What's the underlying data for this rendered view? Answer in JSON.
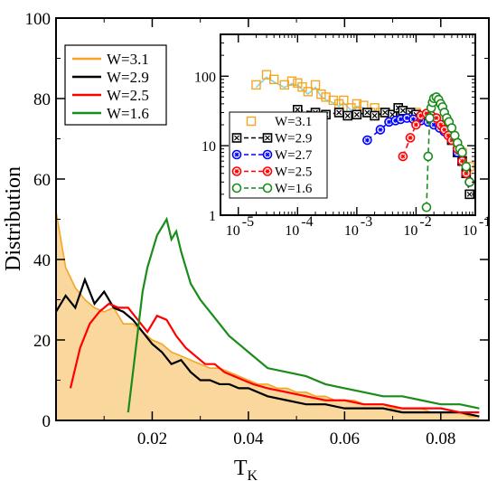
{
  "chart_data": [
    {
      "type": "line",
      "xlabel": "T",
      "xlabel_sub": "K",
      "ylabel": "Distribution",
      "xlim": [
        0,
        0.09
      ],
      "ylim": [
        0,
        100
      ],
      "xticks": [
        0.02,
        0.04,
        0.06,
        0.08
      ],
      "xtick_labels": [
        "0.02",
        "0.04",
        "0.06",
        "0.08"
      ],
      "yticks": [
        0,
        20,
        40,
        60,
        80,
        100
      ],
      "ytick_labels": [
        "0",
        "20",
        "40",
        "60",
        "80",
        "100"
      ],
      "legend_position": "top-left",
      "series": [
        {
          "name": "W=3.1",
          "color": "#f5a623",
          "style": "filled-histogram",
          "x": [
            0.0,
            0.002,
            0.004,
            0.006,
            0.008,
            0.01,
            0.012,
            0.014,
            0.016,
            0.018,
            0.02,
            0.022,
            0.024,
            0.026,
            0.028,
            0.03,
            0.032,
            0.034,
            0.036,
            0.038,
            0.04,
            0.042,
            0.044,
            0.046,
            0.048,
            0.05,
            0.052,
            0.054,
            0.056,
            0.058,
            0.06,
            0.062,
            0.064,
            0.066,
            0.068,
            0.07,
            0.072,
            0.074,
            0.076,
            0.078,
            0.08,
            0.082,
            0.084,
            0.086,
            0.088
          ],
          "y": [
            52,
            38,
            33,
            30,
            28,
            27,
            28,
            24,
            24,
            22,
            20,
            19,
            17,
            16,
            15,
            14,
            13,
            13,
            12,
            11,
            10,
            9,
            9,
            8,
            8,
            7,
            7,
            6,
            6,
            5,
            5,
            5,
            4,
            4,
            4,
            3,
            3,
            3,
            3,
            2,
            2,
            2,
            2,
            1,
            1
          ]
        },
        {
          "name": "W=2.9",
          "color": "#000000",
          "style": "line",
          "x": [
            0.0,
            0.002,
            0.004,
            0.006,
            0.008,
            0.01,
            0.012,
            0.014,
            0.016,
            0.018,
            0.02,
            0.022,
            0.024,
            0.026,
            0.028,
            0.03,
            0.032,
            0.034,
            0.036,
            0.038,
            0.04,
            0.044,
            0.048,
            0.052,
            0.056,
            0.06,
            0.064,
            0.068,
            0.072,
            0.076,
            0.08,
            0.084,
            0.088
          ],
          "y": [
            27,
            31,
            28,
            35,
            29,
            32,
            28,
            27,
            25,
            22,
            19,
            17,
            14,
            15,
            12,
            10,
            10,
            9,
            9,
            8,
            8,
            6,
            5,
            4,
            4,
            3,
            3,
            3,
            2,
            2,
            2,
            2,
            1
          ]
        },
        {
          "name": "W=2.5",
          "color": "#ff0000",
          "style": "line",
          "x": [
            0.003,
            0.005,
            0.007,
            0.009,
            0.011,
            0.013,
            0.015,
            0.017,
            0.019,
            0.021,
            0.023,
            0.025,
            0.027,
            0.029,
            0.031,
            0.033,
            0.035,
            0.037,
            0.039,
            0.041,
            0.044,
            0.048,
            0.052,
            0.056,
            0.06,
            0.064,
            0.068,
            0.072,
            0.076,
            0.08,
            0.084,
            0.088
          ],
          "y": [
            8,
            18,
            24,
            27,
            29,
            28,
            28,
            25,
            22,
            26,
            25,
            21,
            18,
            16,
            14,
            14,
            12,
            11,
            10,
            9,
            8,
            7,
            6,
            5,
            5,
            4,
            4,
            3,
            3,
            3,
            2,
            2
          ]
        },
        {
          "name": "W=1.6",
          "color": "#1a8c1a",
          "style": "line",
          "x": [
            0.015,
            0.016,
            0.017,
            0.018,
            0.019,
            0.02,
            0.021,
            0.022,
            0.023,
            0.024,
            0.025,
            0.026,
            0.027,
            0.028,
            0.029,
            0.03,
            0.032,
            0.034,
            0.036,
            0.038,
            0.04,
            0.044,
            0.048,
            0.052,
            0.056,
            0.06,
            0.064,
            0.068,
            0.072,
            0.076,
            0.08,
            0.084,
            0.088
          ],
          "y": [
            2,
            12,
            22,
            32,
            38,
            42,
            46,
            48,
            50,
            45,
            47,
            42,
            38,
            34,
            32,
            30,
            27,
            24,
            21,
            19,
            17,
            13,
            12,
            11,
            9,
            8,
            7,
            6,
            6,
            5,
            4,
            4,
            3
          ]
        }
      ]
    },
    {
      "type": "scatter",
      "scale": "log-log",
      "xlim": [
        5e-06,
        0.1
      ],
      "ylim": [
        1,
        400
      ],
      "xtick_base": [
        "10",
        "10",
        "10",
        "10",
        "10"
      ],
      "xtick_exp": [
        "-5",
        "-4",
        "-3",
        "-2",
        "-1"
      ],
      "ytick_labels": [
        "1",
        "10",
        "100"
      ],
      "legend_position": "bottom-left",
      "series": [
        {
          "name": "W=3.1",
          "color": "#f5a623",
          "marker": "square",
          "line": "none",
          "x": [
            2e-05,
            3e-05,
            4e-05,
            6e-05,
            8e-05,
            0.0001,
            0.00012,
            0.00015,
            0.0002,
            0.00025,
            0.0003,
            0.0004,
            0.0005,
            0.0006,
            0.0008,
            0.001,
            0.0013,
            0.0017,
            0.002,
            0.0025,
            0.003,
            0.004,
            0.005,
            0.006,
            0.008,
            0.01,
            0.013,
            0.016,
            0.02,
            0.025,
            0.03,
            0.04,
            0.05,
            0.06,
            0.08
          ],
          "y": [
            75,
            105,
            90,
            75,
            85,
            80,
            70,
            60,
            75,
            55,
            50,
            45,
            40,
            45,
            35,
            40,
            38,
            30,
            35,
            30,
            30,
            28,
            32,
            28,
            30,
            30,
            25,
            28,
            24,
            22,
            18,
            14,
            10,
            8,
            5
          ]
        },
        {
          "name": "W=2.9",
          "color": "#000000",
          "marker": "square-x",
          "line": "dashed",
          "x": [
            0.0001,
            0.0002,
            0.0003,
            0.0005,
            0.0007,
            0.001,
            0.0015,
            0.002,
            0.003,
            0.004,
            0.005,
            0.006,
            0.008,
            0.01,
            0.013,
            0.016,
            0.02,
            0.025,
            0.03,
            0.04,
            0.05,
            0.06,
            0.07,
            0.08
          ],
          "y": [
            33,
            30,
            28,
            30,
            27,
            28,
            30,
            27,
            30,
            28,
            35,
            32,
            30,
            28,
            25,
            24,
            22,
            20,
            18,
            12,
            8,
            6,
            4,
            2
          ]
        },
        {
          "name": "W=2.7",
          "color": "#0000ff",
          "marker": "circle-star",
          "line": "dashed",
          "x": [
            0.0015,
            0.0025,
            0.0035,
            0.0045,
            0.0055,
            0.007,
            0.009,
            0.012,
            0.016,
            0.02,
            0.025,
            0.03,
            0.04,
            0.05,
            0.06,
            0.07,
            0.08
          ],
          "y": [
            12,
            17,
            22,
            23,
            24,
            25,
            24,
            23,
            22,
            20,
            18,
            16,
            12,
            8,
            6,
            4,
            3
          ]
        },
        {
          "name": "W=2.5",
          "color": "#ff0000",
          "marker": "circle-star",
          "line": "dashed",
          "x": [
            0.006,
            0.008,
            0.01,
            0.012,
            0.015,
            0.018,
            0.022,
            0.026,
            0.03,
            0.035,
            0.04,
            0.05,
            0.06,
            0.07,
            0.08
          ],
          "y": [
            7,
            13,
            20,
            27,
            29,
            27,
            25,
            20,
            17,
            14,
            12,
            9,
            6,
            4,
            3
          ]
        },
        {
          "name": "W=1.6",
          "color": "#1a8c1a",
          "marker": "circle-o",
          "line": "dashed",
          "x": [
            0.015,
            0.016,
            0.017,
            0.018,
            0.019,
            0.02,
            0.022,
            0.024,
            0.026,
            0.028,
            0.03,
            0.033,
            0.036,
            0.04,
            0.045,
            0.05,
            0.055,
            0.06,
            0.07,
            0.08
          ],
          "y": [
            1.3,
            7,
            25,
            35,
            42,
            48,
            50,
            46,
            40,
            36,
            30,
            25,
            22,
            18,
            14,
            11,
            9,
            8,
            5,
            3
          ]
        }
      ]
    }
  ]
}
